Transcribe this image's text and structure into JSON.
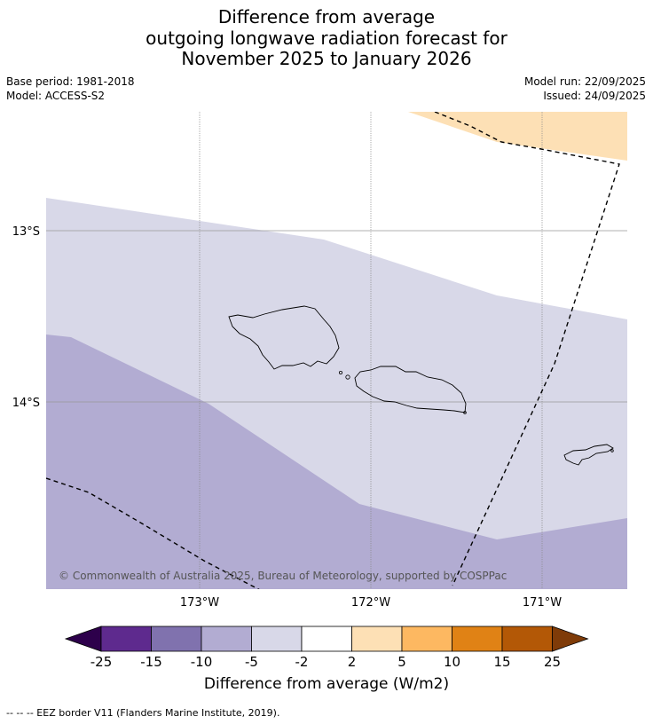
{
  "title": {
    "line1": "Difference from average",
    "line2": "outgoing longwave radiation forecast for",
    "line3": "November 2025 to January 2026"
  },
  "meta": {
    "base_period": "Base period: 1981-2018",
    "model": "Model: ACCESS-S2",
    "model_run": "Model run: 22/09/2025",
    "issued": "Issued: 24/09/2025"
  },
  "map": {
    "lat_labels": [
      "13°S",
      "14°S"
    ],
    "lon_labels": [
      "173°W",
      "172°W",
      "171°W"
    ],
    "copyright": "© Commonwealth of Australia 2025, Bureau of Meteorology, supported by COSPPac",
    "colors": {
      "band_neg5_neg2": "#d8d8e8",
      "band_neg10_neg5": "#b2acd2",
      "band_2_5": "#fde0b5",
      "grid": "#888888",
      "eez": "#000000"
    }
  },
  "colorbar": {
    "title": "Difference from average (W/m2)",
    "ticks": [
      "-25",
      "-15",
      "-10",
      "-5",
      "-2",
      "2",
      "5",
      "10",
      "15",
      "25"
    ],
    "colors": [
      "#2d004b",
      "#5e2a8e",
      "#8072ae",
      "#b2acd2",
      "#d8d8e8",
      "#ffffff",
      "#fde0b5",
      "#fdb861",
      "#e08215",
      "#b35806",
      "#7f3b08"
    ]
  },
  "footer": {
    "legend": "--  --  -- EEZ border V11 (Flanders Marine Institute, 2019)."
  }
}
